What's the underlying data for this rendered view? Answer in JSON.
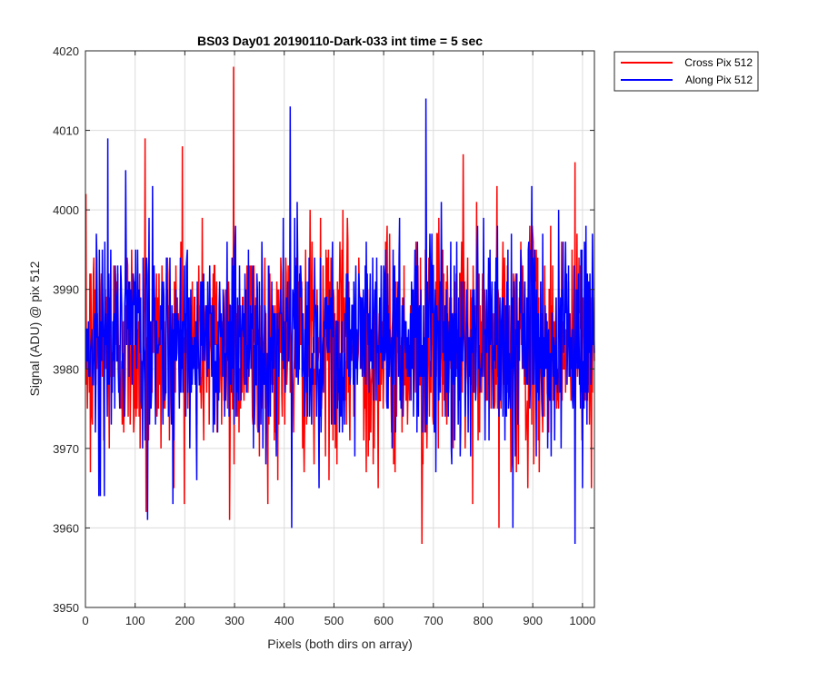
{
  "chart_data": {
    "type": "line",
    "title": "BS03 Day01 20190110-Dark-033 int time = 5 sec",
    "xlabel": "Pixels (both dirs on array)",
    "ylabel": "Signal (ADU) @ pix 512",
    "xlim": [
      0,
      1024
    ],
    "ylim": [
      3950,
      4020
    ],
    "xticks": [
      "0",
      "100",
      "200",
      "300",
      "400",
      "500",
      "600",
      "700",
      "800",
      "900",
      "1000"
    ],
    "yticks": [
      "3950",
      "3960",
      "3970",
      "3980",
      "3990",
      "4000",
      "4010",
      "4020"
    ],
    "grid": true,
    "legend_position": "outside-top-right",
    "series": [
      {
        "name": "Cross Pix 512",
        "color": "#ff0000",
        "x_start": 1,
        "x_end": 1024,
        "baseline": 3983,
        "noise_sigma": 7,
        "peaks": [
          {
            "x": 10,
            "y": 3967
          },
          {
            "x": 120,
            "y": 4009
          },
          {
            "x": 122,
            "y": 3962
          },
          {
            "x": 195,
            "y": 4008
          },
          {
            "x": 290,
            "y": 3961
          },
          {
            "x": 298,
            "y": 4018
          },
          {
            "x": 350,
            "y": 3969
          },
          {
            "x": 380,
            "y": 3971
          },
          {
            "x": 460,
            "y": 3968
          },
          {
            "x": 565,
            "y": 3967
          },
          {
            "x": 620,
            "y": 3968
          },
          {
            "x": 677,
            "y": 3958
          },
          {
            "x": 760,
            "y": 4007
          },
          {
            "x": 832,
            "y": 3960
          },
          {
            "x": 985,
            "y": 4006
          },
          {
            "x": 1018,
            "y": 3965
          }
        ]
      },
      {
        "name": "Along Pix 512",
        "color": "#0000ff",
        "x_start": 1,
        "x_end": 1024,
        "baseline": 3984,
        "noise_sigma": 6.5,
        "peaks": [
          {
            "x": 30,
            "y": 3964
          },
          {
            "x": 45,
            "y": 4009
          },
          {
            "x": 125,
            "y": 3961
          },
          {
            "x": 412,
            "y": 4013
          },
          {
            "x": 415,
            "y": 3960
          },
          {
            "x": 685,
            "y": 4014
          },
          {
            "x": 705,
            "y": 3967
          },
          {
            "x": 860,
            "y": 3960
          },
          {
            "x": 985,
            "y": 3958
          },
          {
            "x": 1000,
            "y": 3965
          }
        ]
      }
    ]
  }
}
